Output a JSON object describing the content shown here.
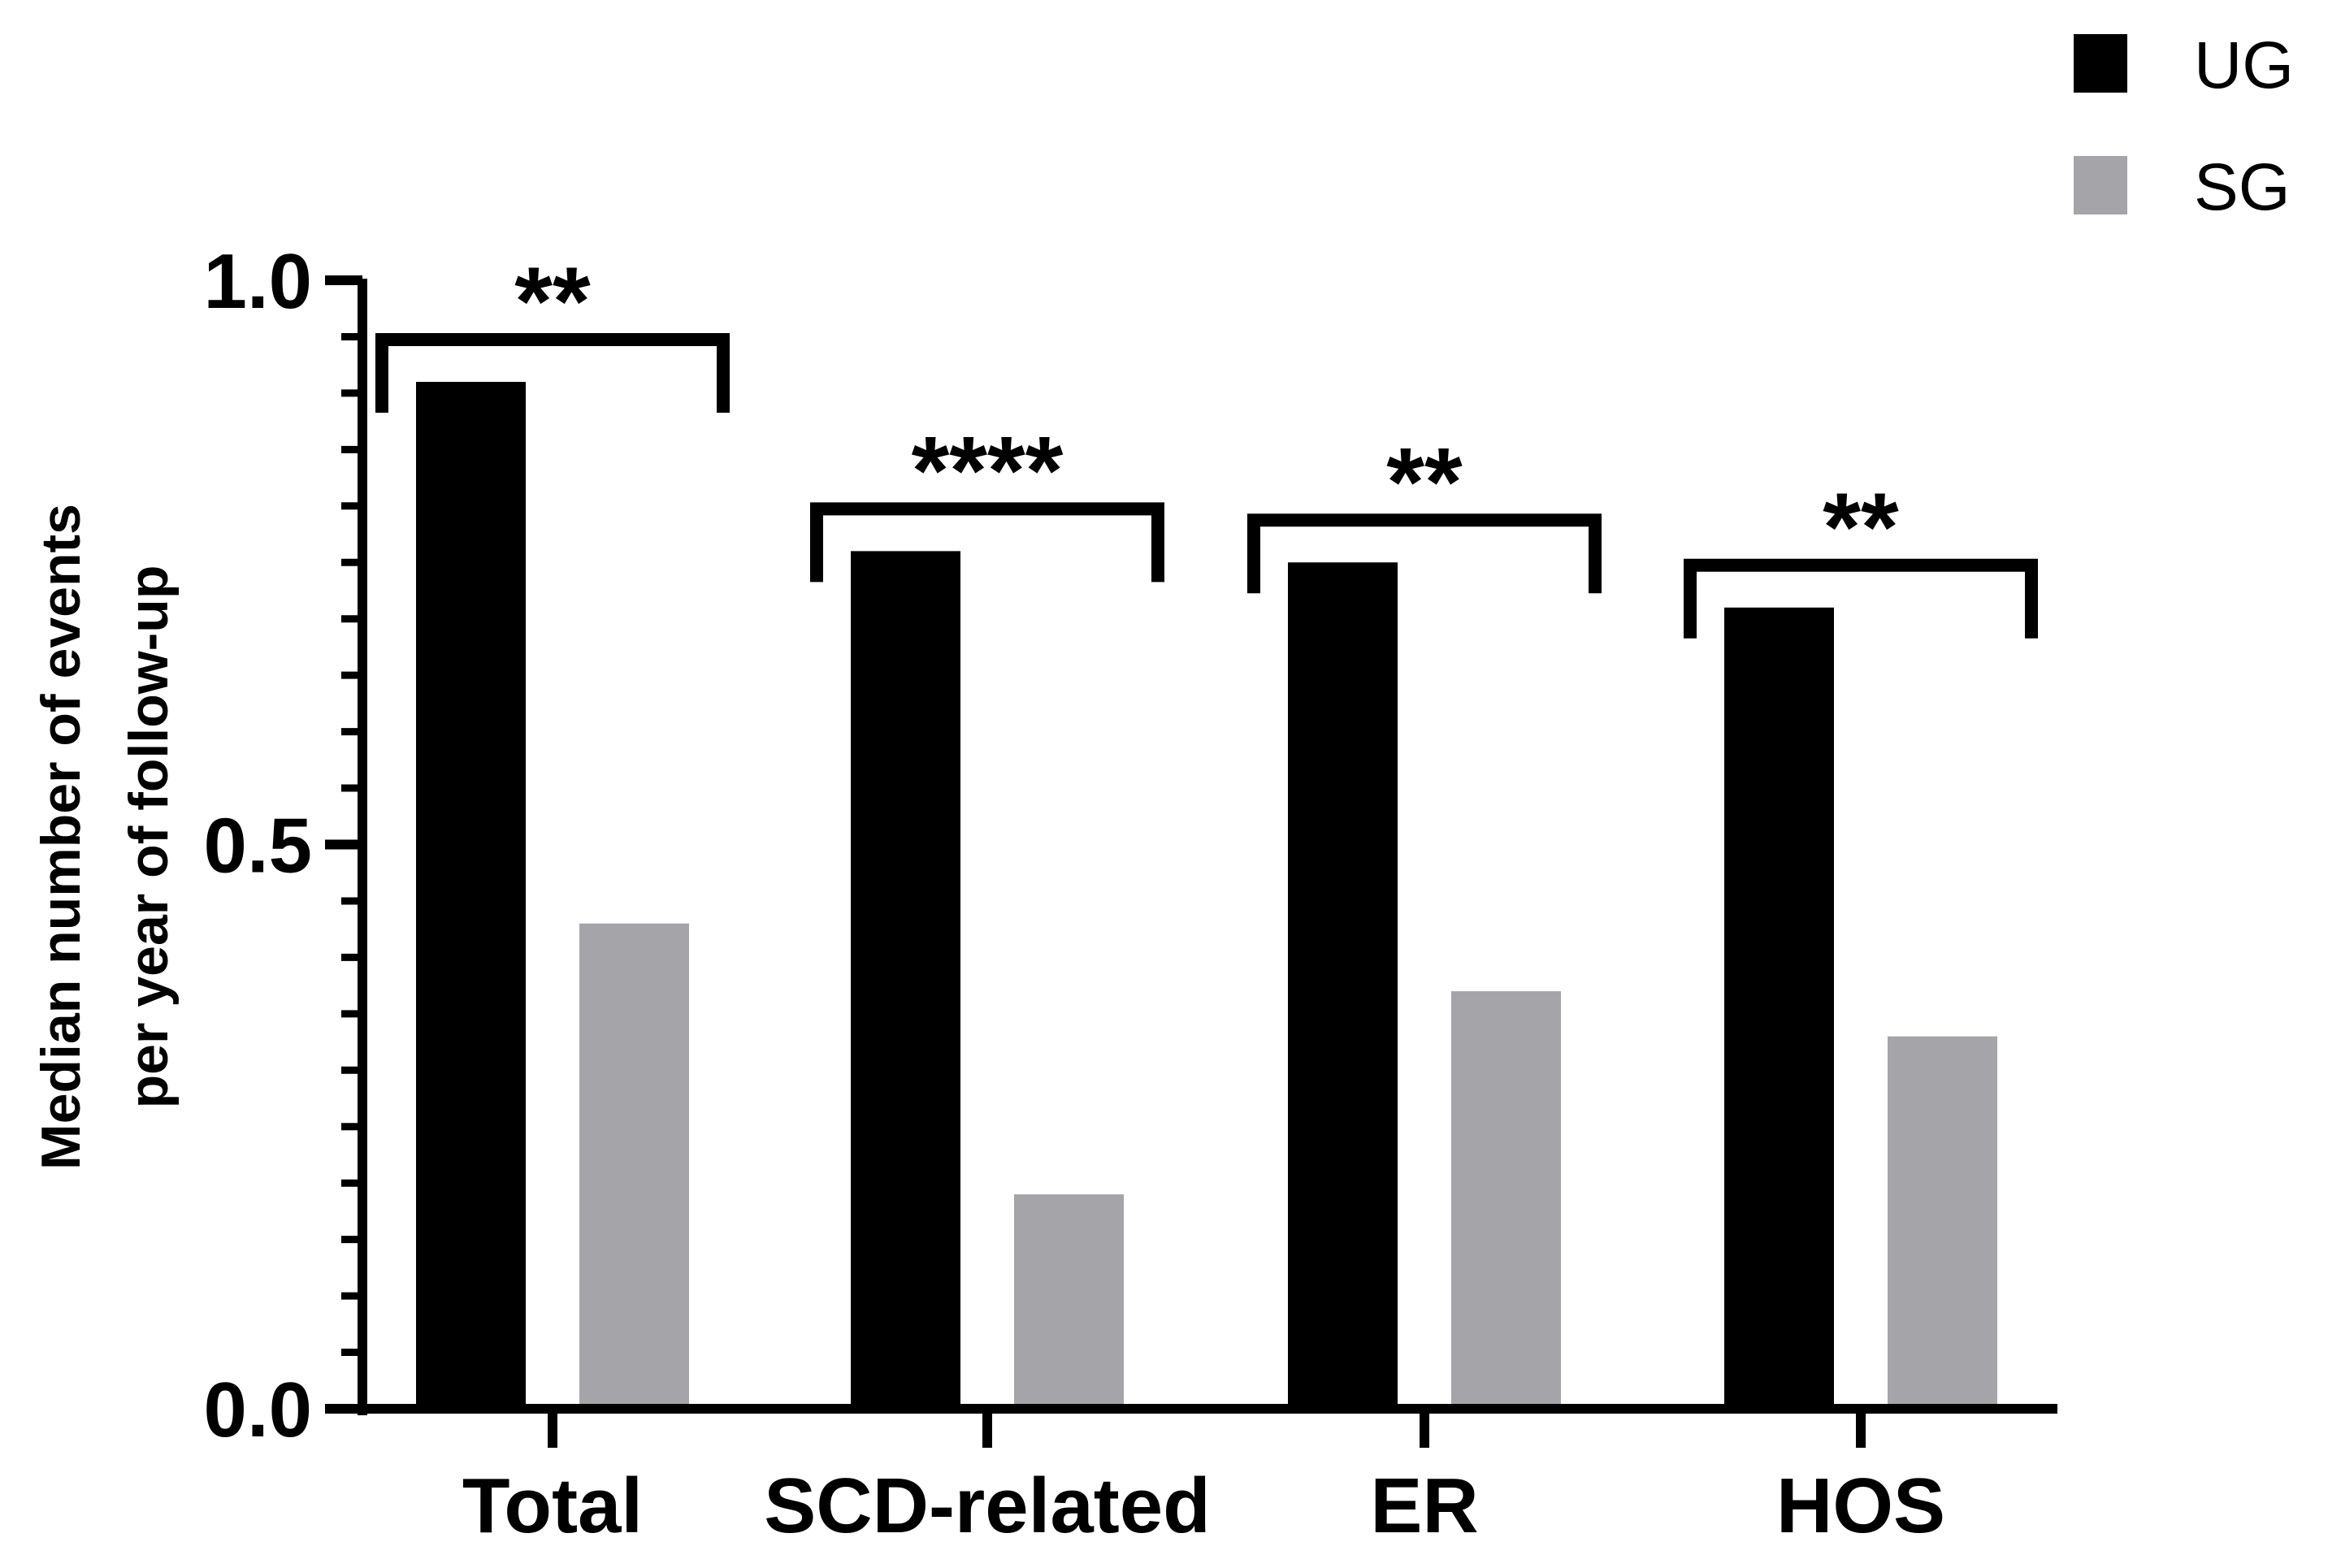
{
  "chart_data": {
    "type": "bar",
    "categories": [
      "Total",
      "SCD-related",
      "ER",
      "HOS"
    ],
    "series": [
      {
        "name": "UG",
        "color": "#000000",
        "values": [
          0.91,
          0.76,
          0.75,
          0.71
        ]
      },
      {
        "name": "SG",
        "color": "#a5a4a9",
        "values": [
          0.43,
          0.19,
          0.37,
          0.33
        ]
      }
    ],
    "significance": [
      "**",
      "****",
      "**",
      "**"
    ],
    "ylabel_lines": [
      "Median number of events",
      "per year of follow-up"
    ],
    "xlabel": "",
    "ylim": [
      0,
      1.0
    ],
    "yticks": [
      {
        "value": 0.0,
        "label": "0.0"
      },
      {
        "value": 0.5,
        "label": "0.5"
      },
      {
        "value": 1.0,
        "label": "1.0"
      }
    ],
    "minor_tick_step": 0.05,
    "legend_position": "top-right",
    "grid": false
  }
}
